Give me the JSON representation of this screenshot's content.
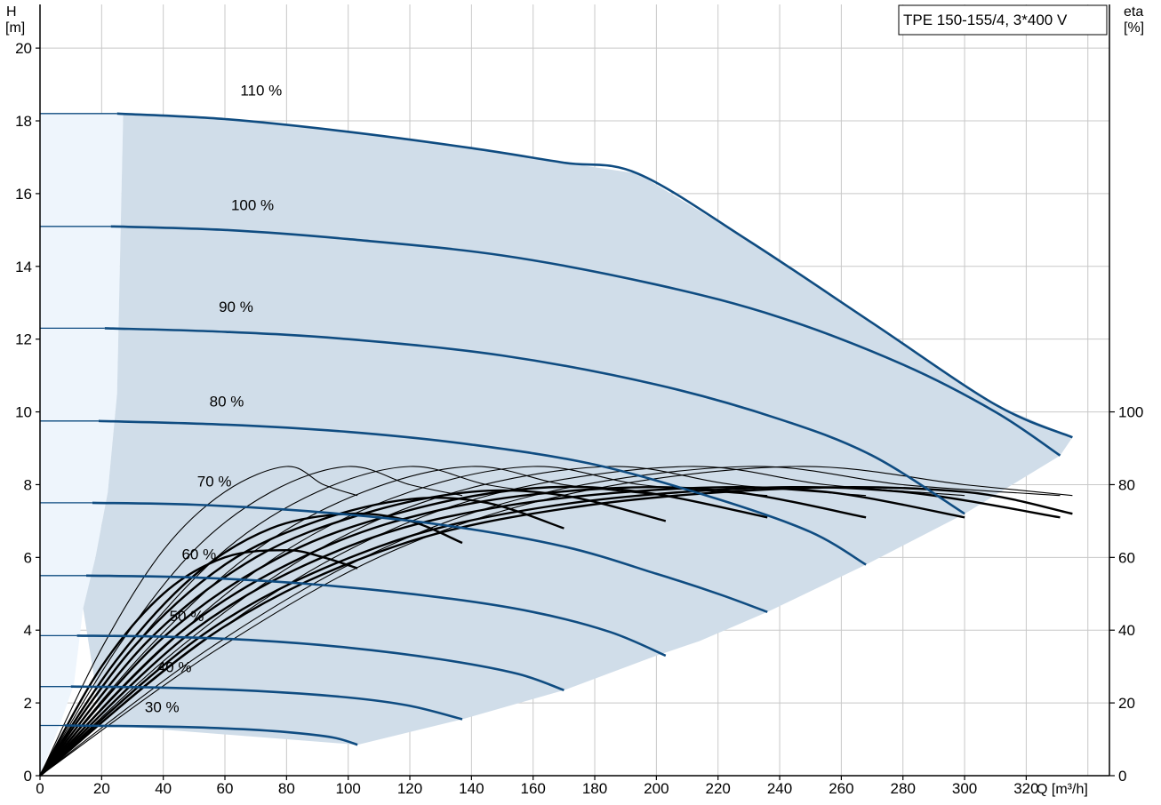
{
  "chart_data": {
    "type": "line",
    "title": "",
    "legend_box": "TPE 150-155/4, 3*400 V",
    "xlabel": "Q [m³/h]",
    "ylabel": "H",
    "ylabel_unit": "[m]",
    "y2label": "eta",
    "y2label_unit": "[%]",
    "xlim": [
      0,
      347
    ],
    "ylim": [
      0,
      21.2
    ],
    "y2lim": [
      0,
      100
    ],
    "grid": true,
    "x_ticks": [
      "0",
      "20",
      "40",
      "60",
      "80",
      "100",
      "120",
      "140",
      "160",
      "180",
      "200",
      "220",
      "240",
      "260",
      "280",
      "300",
      "320"
    ],
    "y_ticks": [
      "0",
      "2",
      "4",
      "6",
      "8",
      "10",
      "12",
      "14",
      "16",
      "18",
      "20"
    ],
    "y2_ticks": [
      "0",
      "20",
      "40",
      "60",
      "80",
      "100"
    ],
    "colors": {
      "head_curve": "#0f4c81",
      "efficiency_curve": "#000000",
      "operating_area": "#d0dde9",
      "low_flow_area": "#eef5fc",
      "grid": "#c8c8c8"
    },
    "operating_area": {
      "upper_boundary": [
        [
          0,
          18.2
        ],
        [
          25,
          18.2
        ],
        [
          60,
          18.05
        ],
        [
          100,
          17.7
        ],
        [
          140,
          17.25
        ],
        [
          170,
          16.85
        ],
        [
          194,
          16.55
        ],
        [
          230,
          14.7
        ],
        [
          270,
          12.45
        ],
        [
          310,
          10.2
        ],
        [
          335,
          9.3
        ]
      ],
      "right_boundary": [
        [
          335,
          9.3
        ],
        [
          331,
          8.8
        ],
        [
          300,
          7.2
        ],
        [
          268,
          5.8
        ],
        [
          236,
          4.5
        ],
        [
          214,
          3.7
        ],
        [
          200,
          3.3
        ],
        [
          170,
          2.35
        ],
        [
          137,
          1.55
        ],
        [
          103,
          0.85
        ]
      ],
      "left_boundary": [
        [
          103,
          0.85
        ],
        [
          20,
          1.4
        ],
        [
          14,
          4.6
        ],
        [
          18,
          6
        ],
        [
          22,
          7.8
        ],
        [
          25,
          10.5
        ],
        [
          27,
          18.2
        ]
      ],
      "low_flow_boundary": [
        [
          27,
          18.2
        ],
        [
          25,
          10.5
        ],
        [
          22,
          7.8
        ],
        [
          18,
          6
        ],
        [
          14,
          4.6
        ],
        [
          11,
          2.5
        ],
        [
          6,
          1.3
        ],
        [
          0,
          0
        ]
      ]
    },
    "head_curves": [
      {
        "label": "110 %",
        "label_at": [
          65,
          18.7
        ],
        "points": [
          [
            0,
            18.2
          ],
          [
            25,
            18.2
          ],
          [
            60,
            18.05
          ],
          [
            100,
            17.7
          ],
          [
            140,
            17.25
          ],
          [
            170,
            16.85
          ],
          [
            194,
            16.55
          ],
          [
            230,
            14.7
          ],
          [
            270,
            12.45
          ],
          [
            310,
            10.2
          ],
          [
            335,
            9.3
          ]
        ]
      },
      {
        "label": "100 %",
        "label_at": [
          62,
          15.55
        ],
        "points": [
          [
            0,
            15.1
          ],
          [
            23,
            15.1
          ],
          [
            60,
            15.0
          ],
          [
            100,
            14.75
          ],
          [
            150,
            14.3
          ],
          [
            200,
            13.5
          ],
          [
            240,
            12.6
          ],
          [
            280,
            11.3
          ],
          [
            310,
            10.0
          ],
          [
            331,
            8.8
          ]
        ]
      },
      {
        "label": "90 %",
        "label_at": [
          58,
          12.75
        ],
        "points": [
          [
            0,
            12.3
          ],
          [
            21,
            12.3
          ],
          [
            60,
            12.2
          ],
          [
            100,
            12.0
          ],
          [
            150,
            11.55
          ],
          [
            200,
            10.75
          ],
          [
            240,
            9.8
          ],
          [
            270,
            8.8
          ],
          [
            300,
            7.2
          ]
        ]
      },
      {
        "label": "80 %",
        "label_at": [
          55,
          10.15
        ],
        "points": [
          [
            0,
            9.75
          ],
          [
            19,
            9.75
          ],
          [
            60,
            9.65
          ],
          [
            100,
            9.45
          ],
          [
            140,
            9.1
          ],
          [
            180,
            8.55
          ],
          [
            220,
            7.6
          ],
          [
            250,
            6.7
          ],
          [
            268,
            5.8
          ]
        ]
      },
      {
        "label": "70 %",
        "label_at": [
          51,
          7.95
        ],
        "points": [
          [
            0,
            7.5
          ],
          [
            17,
            7.5
          ],
          [
            50,
            7.45
          ],
          [
            90,
            7.25
          ],
          [
            130,
            6.9
          ],
          [
            170,
            6.3
          ],
          [
            200,
            5.55
          ],
          [
            220,
            5.0
          ],
          [
            236,
            4.5
          ]
        ]
      },
      {
        "label": "60 %",
        "label_at": [
          46,
          5.95
        ],
        "points": [
          [
            0,
            5.5
          ],
          [
            15,
            5.5
          ],
          [
            50,
            5.45
          ],
          [
            90,
            5.25
          ],
          [
            130,
            4.9
          ],
          [
            160,
            4.5
          ],
          [
            185,
            3.95
          ],
          [
            203,
            3.3
          ]
        ]
      },
      {
        "label": "50 %",
        "label_at": [
          42,
          4.25
        ],
        "points": [
          [
            0,
            3.85
          ],
          [
            12,
            3.85
          ],
          [
            40,
            3.82
          ],
          [
            70,
            3.72
          ],
          [
            100,
            3.52
          ],
          [
            130,
            3.2
          ],
          [
            155,
            2.8
          ],
          [
            170,
            2.35
          ]
        ]
      },
      {
        "label": "40 %",
        "label_at": [
          38,
          2.85
        ],
        "points": [
          [
            0,
            2.45
          ],
          [
            10,
            2.45
          ],
          [
            40,
            2.42
          ],
          [
            70,
            2.33
          ],
          [
            100,
            2.15
          ],
          [
            120,
            1.92
          ],
          [
            137,
            1.55
          ]
        ]
      },
      {
        "label": "30 %",
        "label_at": [
          34,
          1.75
        ],
        "points": [
          [
            0,
            1.38
          ],
          [
            8,
            1.38
          ],
          [
            40,
            1.35
          ],
          [
            60,
            1.3
          ],
          [
            80,
            1.2
          ],
          [
            95,
            1.05
          ],
          [
            103,
            0.85
          ]
        ]
      }
    ],
    "efficiency_curves": [
      {
        "series": "thin",
        "points": [
          [
            0,
            0
          ],
          [
            20,
            35
          ],
          [
            40,
            62
          ],
          [
            60,
            78
          ],
          [
            80,
            85
          ],
          [
            92,
            80
          ],
          [
            103,
            77
          ]
        ]
      },
      {
        "series": "thin",
        "points": [
          [
            0,
            0
          ],
          [
            25,
            35
          ],
          [
            50,
            62
          ],
          [
            75,
            78
          ],
          [
            100,
            85
          ],
          [
            120,
            80
          ],
          [
            137,
            77
          ]
        ]
      },
      {
        "series": "thin",
        "points": [
          [
            0,
            0
          ],
          [
            30,
            35
          ],
          [
            60,
            62
          ],
          [
            90,
            78
          ],
          [
            120,
            85
          ],
          [
            145,
            80
          ],
          [
            170,
            77
          ]
        ]
      },
      {
        "series": "thin",
        "points": [
          [
            0,
            0
          ],
          [
            35,
            35
          ],
          [
            70,
            62
          ],
          [
            105,
            78
          ],
          [
            140,
            85
          ],
          [
            170,
            80
          ],
          [
            203,
            77
          ]
        ]
      },
      {
        "series": "thin",
        "points": [
          [
            0,
            0
          ],
          [
            40,
            35
          ],
          [
            80,
            62
          ],
          [
            120,
            78
          ],
          [
            160,
            85
          ],
          [
            195,
            80
          ],
          [
            236,
            77
          ]
        ]
      },
      {
        "series": "thin",
        "points": [
          [
            0,
            0
          ],
          [
            45,
            35
          ],
          [
            90,
            62
          ],
          [
            135,
            78
          ],
          [
            185,
            85
          ],
          [
            225,
            80
          ],
          [
            268,
            77
          ]
        ]
      },
      {
        "series": "thin",
        "points": [
          [
            0,
            0
          ],
          [
            50,
            35
          ],
          [
            100,
            62
          ],
          [
            150,
            78
          ],
          [
            210,
            85
          ],
          [
            255,
            80
          ],
          [
            300,
            77
          ]
        ]
      },
      {
        "series": "thin",
        "points": [
          [
            0,
            0
          ],
          [
            55,
            35
          ],
          [
            110,
            62
          ],
          [
            165,
            78
          ],
          [
            230,
            85
          ],
          [
            280,
            80
          ],
          [
            331,
            77
          ]
        ]
      },
      {
        "series": "thin",
        "points": [
          [
            0,
            0
          ],
          [
            58,
            35
          ],
          [
            115,
            62
          ],
          [
            175,
            78
          ],
          [
            245,
            85
          ],
          [
            300,
            80
          ],
          [
            335,
            77
          ]
        ]
      },
      {
        "series": "thick",
        "points": [
          [
            0,
            0
          ],
          [
            20,
            30
          ],
          [
            40,
            50
          ],
          [
            60,
            60
          ],
          [
            80,
            62
          ],
          [
            92,
            60
          ],
          [
            103,
            57
          ]
        ]
      },
      {
        "series": "thick",
        "points": [
          [
            0,
            0
          ],
          [
            25,
            32
          ],
          [
            50,
            55
          ],
          [
            75,
            68
          ],
          [
            100,
            72
          ],
          [
            120,
            70
          ],
          [
            137,
            64
          ]
        ]
      },
      {
        "series": "thick",
        "points": [
          [
            0,
            0
          ],
          [
            30,
            35
          ],
          [
            60,
            58
          ],
          [
            90,
            70
          ],
          [
            120,
            76
          ],
          [
            145,
            75
          ],
          [
            170,
            68
          ]
        ]
      },
      {
        "series": "thick",
        "points": [
          [
            0,
            0
          ],
          [
            35,
            37
          ],
          [
            70,
            60
          ],
          [
            105,
            72
          ],
          [
            140,
            78
          ],
          [
            170,
            77
          ],
          [
            203,
            70
          ]
        ]
      },
      {
        "series": "thick",
        "points": [
          [
            0,
            0
          ],
          [
            40,
            38
          ],
          [
            80,
            61
          ],
          [
            120,
            73
          ],
          [
            160,
            79
          ],
          [
            195,
            78
          ],
          [
            236,
            71
          ]
        ]
      },
      {
        "series": "thick",
        "points": [
          [
            0,
            0
          ],
          [
            45,
            39
          ],
          [
            90,
            62
          ],
          [
            135,
            74
          ],
          [
            185,
            79
          ],
          [
            225,
            78
          ],
          [
            268,
            71
          ]
        ]
      },
      {
        "series": "thick",
        "points": [
          [
            0,
            0
          ],
          [
            50,
            40
          ],
          [
            100,
            63
          ],
          [
            150,
            74
          ],
          [
            210,
            79
          ],
          [
            255,
            78
          ],
          [
            300,
            71
          ]
        ]
      },
      {
        "series": "thick",
        "points": [
          [
            0,
            0
          ],
          [
            55,
            40
          ],
          [
            110,
            63
          ],
          [
            165,
            74
          ],
          [
            230,
            79
          ],
          [
            280,
            78
          ],
          [
            331,
            71
          ]
        ]
      },
      {
        "series": "thick",
        "points": [
          [
            0,
            0
          ],
          [
            58,
            40
          ],
          [
            115,
            63
          ],
          [
            175,
            74
          ],
          [
            245,
            79
          ],
          [
            300,
            78
          ],
          [
            335,
            72
          ]
        ]
      }
    ]
  }
}
